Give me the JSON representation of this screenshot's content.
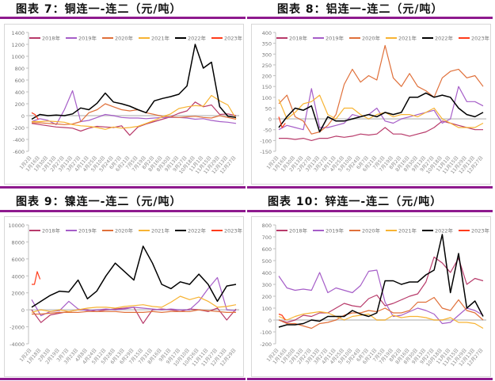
{
  "chart_data": [
    {
      "type": "line",
      "title": "图表 7：铜连一-连二（元/吨）",
      "ylim": [
        -600,
        1400
      ],
      "ystep": 200,
      "xlabels": [
        "1月2日",
        "1月16日",
        "1月30日",
        "2月13日",
        "2月27日",
        "3月13日",
        "3月27日",
        "4月11日",
        "4月25日",
        "5月10日",
        "5月24日",
        "6月7日",
        "6月21日",
        "7月5日",
        "7月19日",
        "8月2日",
        "8月16日",
        "8月30日",
        "9月13日",
        "9月27日",
        "10月18日",
        "11月1日",
        "11月15日",
        "11月29日",
        "12月13日",
        "12月27日"
      ],
      "legend_position": "top-center",
      "series": [
        {
          "name": "2018年",
          "color": "#b83a6a",
          "values": [
            -130,
            -150,
            -170,
            -190,
            -200,
            -210,
            -260,
            -210,
            -180,
            -190,
            -200,
            -170,
            -330,
            -190,
            -140,
            -100,
            -60,
            -20,
            40,
            80,
            230,
            150,
            180,
            20,
            30,
            0
          ]
        },
        {
          "name": "2019年",
          "color": "#a65ec8",
          "values": [
            -100,
            -50,
            -80,
            -150,
            100,
            420,
            -100,
            -80,
            -30,
            20,
            0,
            -30,
            -40,
            -40,
            -50,
            -40,
            -30,
            -30,
            -30,
            -40,
            -60,
            -50,
            -80,
            -100,
            -110,
            -130
          ]
        },
        {
          "name": "2020年",
          "color": "#e0703a",
          "values": [
            -120,
            -120,
            -130,
            -140,
            -150,
            -140,
            -100,
            50,
            100,
            200,
            150,
            100,
            80,
            100,
            50,
            20,
            -10,
            -20,
            -30,
            -20,
            -10,
            -30,
            -40,
            0,
            -30,
            -60
          ]
        },
        {
          "name": "2021年",
          "color": "#f7b333",
          "values": [
            -100,
            -100,
            -90,
            -100,
            -110,
            -150,
            -170,
            -180,
            -200,
            -230,
            -190,
            -210,
            -200,
            -180,
            -130,
            -80,
            -20,
            30,
            120,
            150,
            170,
            160,
            340,
            250,
            180,
            -50
          ]
        },
        {
          "name": "2022年",
          "color": "#000000",
          "values": [
            -60,
            20,
            0,
            10,
            0,
            30,
            130,
            100,
            210,
            380,
            230,
            200,
            160,
            100,
            50,
            250,
            290,
            320,
            360,
            500,
            1200,
            800,
            900,
            150,
            -10,
            -30
          ]
        },
        {
          "name": "2023年",
          "color": "#ff3b1a",
          "x": [
            0,
            0.4,
            0.8
          ],
          "values": [
            50,
            20,
            -60
          ]
        }
      ]
    },
    {
      "type": "line",
      "title": "图表 8：铝连一-连二（元/吨）",
      "ylim": [
        -150,
        400
      ],
      "ystep": 50,
      "xlabels": [
        "1月2日",
        "1月16日",
        "1月30日",
        "2月13日",
        "2月27日",
        "3月13日",
        "3月27日",
        "4月11日",
        "4月25日",
        "5月10日",
        "5月24日",
        "6月7日",
        "6月21日",
        "7月5日",
        "7月19日",
        "8月2日",
        "8月16日",
        "8月30日",
        "9月13日",
        "9月27日",
        "10月18日",
        "11月1日",
        "11月15日",
        "11月29日",
        "12月13日",
        "12月27日"
      ],
      "legend_position": "top-center",
      "series": [
        {
          "name": "2018年",
          "color": "#b83a6a",
          "values": [
            -90,
            -90,
            -95,
            -90,
            -100,
            -90,
            -90,
            -80,
            -85,
            -80,
            -70,
            -75,
            -70,
            -40,
            -70,
            -70,
            -80,
            -70,
            -60,
            -40,
            -10,
            -20,
            -30,
            -40,
            -50,
            -50
          ]
        },
        {
          "name": "2019年",
          "color": "#a65ec8",
          "values": [
            -50,
            -30,
            -40,
            -50,
            140,
            -40,
            -40,
            -30,
            -20,
            20,
            10,
            20,
            50,
            -10,
            -20,
            0,
            10,
            20,
            30,
            40,
            -20,
            0,
            150,
            80,
            80,
            60
          ]
        },
        {
          "name": "2020年",
          "color": "#e0703a",
          "values": [
            70,
            110,
            10,
            -10,
            -70,
            -60,
            -30,
            20,
            160,
            230,
            170,
            200,
            180,
            340,
            190,
            150,
            210,
            150,
            130,
            100,
            190,
            220,
            230,
            190,
            200,
            150
          ]
        },
        {
          "name": "2021年",
          "color": "#f7b333",
          "values": [
            90,
            0,
            30,
            70,
            80,
            110,
            20,
            0,
            50,
            50,
            20,
            0,
            20,
            30,
            10,
            20,
            20,
            10,
            30,
            50,
            0,
            -20,
            -40,
            -40,
            -40,
            -20
          ]
        },
        {
          "name": "2022年",
          "color": "#000000",
          "values": [
            -40,
            10,
            50,
            40,
            60,
            -60,
            10,
            -10,
            -10,
            0,
            10,
            20,
            10,
            30,
            20,
            30,
            100,
            100,
            120,
            100,
            110,
            100,
            50,
            20,
            10,
            30
          ]
        },
        {
          "name": "2023年",
          "color": "#ff3b1a",
          "x": [
            0,
            0.4,
            0.8
          ],
          "values": [
            10,
            -40,
            -20
          ]
        }
      ]
    },
    {
      "type": "line",
      "title": "图表 9：镍连一-连二（元/吨）",
      "ylim": [
        -4000,
        10000
      ],
      "ystep": 2000,
      "xlabels": [
        "1月2日",
        "1月18日",
        "2月3日",
        "2月19日",
        "3月7日",
        "3月23日",
        "4月8日",
        "4月24日",
        "5月12日",
        "5月28日",
        "6月13日",
        "6月29日",
        "7月15日",
        "7月31日",
        "8月16日",
        "9月1日",
        "9月17日",
        "10月10日",
        "10月26日",
        "11月11日",
        "11月27日",
        "12月13日",
        "12月29日"
      ],
      "legend_position": "top-center",
      "series": [
        {
          "name": "2018年",
          "color": "#b83a6a",
          "values": [
            0,
            -1500,
            -600,
            -400,
            -200,
            0,
            0,
            -200,
            0,
            100,
            200,
            300,
            -1600,
            0,
            100,
            0,
            -200,
            100,
            0,
            -200,
            200,
            -1200,
            100
          ]
        },
        {
          "name": "2019年",
          "color": "#a65ec8",
          "values": [
            1200,
            -700,
            -200,
            -100,
            1000,
            100,
            -100,
            0,
            100,
            0,
            100,
            300,
            200,
            100,
            0,
            100,
            0,
            0,
            1000,
            2500,
            3800,
            0,
            -100
          ]
        },
        {
          "name": "2020年",
          "color": "#e0703a",
          "values": [
            -500,
            -500,
            -400,
            -300,
            -300,
            -300,
            -200,
            -200,
            -200,
            -200,
            -300,
            -300,
            -300,
            -200,
            -300,
            -200,
            -200,
            -200,
            0,
            -100,
            -200,
            -300,
            -300
          ]
        },
        {
          "name": "2021年",
          "color": "#f7b333",
          "values": [
            -300,
            0,
            -200,
            0,
            -200,
            0,
            200,
            300,
            300,
            200,
            400,
            500,
            600,
            400,
            300,
            900,
            1600,
            1200,
            1500,
            1000,
            300,
            400,
            600
          ]
        },
        {
          "name": "2022年",
          "color": "#000000",
          "values": [
            300,
            1000,
            1700,
            2200,
            2100,
            3500,
            1300,
            2200,
            4000,
            5500,
            4500,
            3500,
            7500,
            5500,
            3000,
            2500,
            3300,
            3000,
            4200,
            3000,
            1000,
            2800,
            3000
          ]
        },
        {
          "name": "2023年",
          "color": "#ff3b1a",
          "x": [
            0,
            0.3,
            0.6,
            0.9
          ],
          "values": [
            3000,
            3000,
            4500,
            3600
          ]
        }
      ]
    },
    {
      "type": "line",
      "title": "图表 10：锌连一-连二（元/吨）",
      "ylim": [
        -200,
        800
      ],
      "ystep": 100,
      "xlabels": [
        "1月2日",
        "1月16日",
        "1月30日",
        "2月13日",
        "2月27日",
        "3月13日",
        "3月27日",
        "4月11日",
        "4月25日",
        "5月10日",
        "5月24日",
        "6月7日",
        "6月21日",
        "7月5日",
        "7月19日",
        "8月2日",
        "8月16日",
        "8月30日",
        "9月13日",
        "9月27日",
        "10月18日",
        "11月1日",
        "11月15日",
        "11月29日",
        "12月13日",
        "12月27日"
      ],
      "legend_position": "top-center",
      "series": [
        {
          "name": "2018年",
          "color": "#b83a6a",
          "values": [
            0,
            -20,
            0,
            40,
            30,
            60,
            60,
            100,
            140,
            120,
            110,
            180,
            210,
            120,
            140,
            170,
            200,
            220,
            320,
            530,
            480,
            400,
            520,
            300,
            350,
            330
          ]
        },
        {
          "name": "2019年",
          "color": "#a65ec8",
          "values": [
            370,
            270,
            250,
            260,
            250,
            400,
            230,
            270,
            250,
            230,
            290,
            410,
            420,
            150,
            30,
            40,
            70,
            100,
            80,
            50,
            -30,
            -20,
            40,
            100,
            80,
            40
          ]
        },
        {
          "name": "2020年",
          "color": "#e0703a",
          "values": [
            0,
            -30,
            -30,
            -50,
            -70,
            -30,
            -20,
            0,
            40,
            60,
            60,
            80,
            70,
            100,
            60,
            60,
            80,
            150,
            150,
            190,
            100,
            80,
            170,
            80,
            60,
            0
          ]
        },
        {
          "name": "2021年",
          "color": "#f7b333",
          "values": [
            30,
            0,
            30,
            50,
            60,
            70,
            60,
            30,
            0,
            30,
            40,
            50,
            0,
            0,
            40,
            20,
            30,
            30,
            20,
            0,
            0,
            20,
            -20,
            -20,
            -30,
            -70
          ]
        },
        {
          "name": "2022年",
          "color": "#000000",
          "values": [
            -60,
            -40,
            -40,
            -30,
            0,
            -10,
            30,
            30,
            30,
            80,
            50,
            30,
            60,
            330,
            330,
            300,
            320,
            320,
            380,
            420,
            720,
            230,
            560,
            100,
            160,
            30
          ]
        },
        {
          "name": "2023年",
          "color": "#ff3b1a",
          "x": [
            0,
            0.4,
            0.8
          ],
          "values": [
            50,
            40,
            0
          ]
        }
      ]
    }
  ]
}
